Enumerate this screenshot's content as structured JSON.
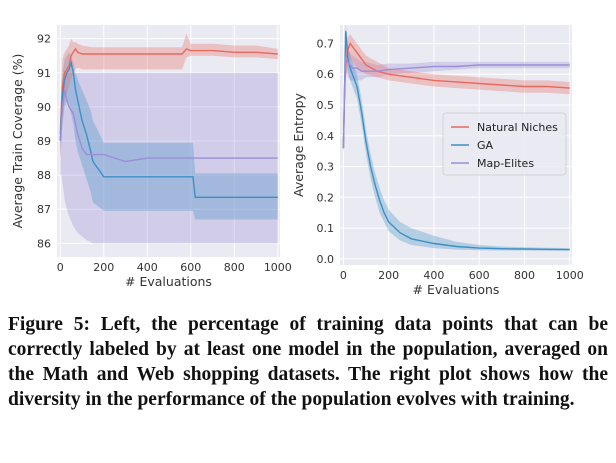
{
  "colors": {
    "natural_niches": "#e8695f",
    "ga": "#3f8fc4",
    "map_elites": "#9b8fd8",
    "grid": "#ffffff",
    "panel": "#eaeaf2"
  },
  "caption": {
    "text": "Figure 5: Left, the percentage of training data points that can be correctly labeled by at least one model in the population, averaged on the Math and Web shopping datasets. The right plot shows how the diversity in the performance of the population evolves with training."
  },
  "chart_data": [
    {
      "type": "line",
      "xlabel": "# Evaluations",
      "ylabel": "Average Train Coverage (%)",
      "xlim": [
        -15,
        1010
      ],
      "ylim": [
        85.6,
        92.4
      ],
      "xticks": [
        0,
        200,
        400,
        600,
        800,
        1000
      ],
      "yticks": [
        86,
        87,
        88,
        89,
        90,
        91,
        92
      ],
      "grid": true,
      "legend": "none",
      "series": [
        {
          "key": "natural_niches",
          "x": [
            0,
            5,
            10,
            20,
            30,
            40,
            50,
            60,
            70,
            80,
            100,
            150,
            200,
            300,
            400,
            500,
            560,
            580,
            600,
            700,
            800,
            900,
            1000
          ],
          "y": [
            89.2,
            90.0,
            90.6,
            91.0,
            91.1,
            91.2,
            91.5,
            91.6,
            91.7,
            91.6,
            91.55,
            91.55,
            91.55,
            91.55,
            91.55,
            91.55,
            91.55,
            91.7,
            91.65,
            91.65,
            91.6,
            91.6,
            91.55
          ],
          "lower": [
            88.5,
            89.0,
            89.6,
            90.2,
            90.4,
            90.6,
            90.8,
            91.0,
            91.1,
            91.15,
            91.1,
            91.1,
            91.1,
            91.1,
            91.1,
            91.1,
            91.1,
            91.45,
            91.5,
            91.5,
            91.45,
            91.45,
            91.4
          ],
          "upper": [
            89.8,
            90.8,
            91.4,
            91.6,
            91.7,
            91.8,
            92.0,
            91.9,
            91.9,
            91.85,
            91.8,
            91.75,
            91.75,
            91.75,
            91.75,
            91.75,
            91.75,
            92.15,
            91.85,
            91.85,
            91.8,
            91.8,
            91.7
          ]
        },
        {
          "key": "ga",
          "x": [
            0,
            5,
            10,
            20,
            30,
            40,
            50,
            60,
            70,
            80,
            100,
            120,
            140,
            150,
            200,
            300,
            400,
            500,
            610,
            620,
            700,
            800,
            900,
            1000
          ],
          "y": [
            89.0,
            89.8,
            90.3,
            90.8,
            91.0,
            91.1,
            91.3,
            91.0,
            90.5,
            90.2,
            89.6,
            89.2,
            88.7,
            88.4,
            87.95,
            87.95,
            87.95,
            87.95,
            87.95,
            87.35,
            87.35,
            87.35,
            87.35,
            87.35
          ],
          "lower": [
            88.5,
            89.0,
            89.5,
            90.0,
            90.2,
            90.1,
            89.8,
            89.5,
            89.0,
            88.7,
            88.3,
            87.9,
            87.5,
            87.2,
            86.95,
            86.95,
            86.95,
            86.95,
            86.95,
            86.7,
            86.7,
            86.7,
            86.7,
            86.7
          ],
          "upper": [
            89.6,
            90.4,
            91.0,
            91.4,
            91.5,
            91.6,
            91.5,
            91.3,
            91.0,
            90.8,
            90.5,
            90.2,
            89.9,
            89.6,
            88.95,
            88.95,
            88.95,
            88.95,
            88.95,
            88.05,
            88.05,
            88.05,
            88.05,
            88.05
          ]
        },
        {
          "key": "map_elites",
          "x": [
            0,
            5,
            10,
            20,
            30,
            40,
            60,
            80,
            100,
            120,
            150,
            200,
            300,
            400,
            500,
            600,
            700,
            800,
            900,
            1000
          ],
          "y": [
            89.0,
            89.5,
            90.0,
            90.5,
            90.2,
            90.0,
            89.8,
            89.2,
            88.8,
            88.6,
            88.6,
            88.6,
            88.4,
            88.5,
            88.5,
            88.5,
            88.5,
            88.5,
            88.5,
            88.5
          ],
          "lower": [
            88.0,
            88.0,
            87.8,
            87.3,
            87.0,
            86.8,
            86.5,
            86.3,
            86.2,
            86.1,
            86.0,
            86.0,
            86.0,
            86.0,
            86.0,
            86.0,
            86.0,
            86.0,
            86.0,
            86.0
          ],
          "upper": [
            89.6,
            90.2,
            90.6,
            91.0,
            91.0,
            91.0,
            91.0,
            91.0,
            91.0,
            91.0,
            91.0,
            91.0,
            91.0,
            91.0,
            91.0,
            91.0,
            91.0,
            91.0,
            91.0,
            91.0
          ]
        }
      ]
    },
    {
      "type": "line",
      "xlabel": "# Evaluations",
      "ylabel": "Average Entropy",
      "xlim": [
        -15,
        1010
      ],
      "ylim": [
        -0.02,
        0.76
      ],
      "xticks": [
        0,
        200,
        400,
        600,
        800,
        1000
      ],
      "yticks": [
        0.0,
        0.1,
        0.2,
        0.3,
        0.4,
        0.5,
        0.6,
        0.7
      ],
      "ytick_labels": [
        "0.0",
        "0.1",
        "0.2",
        "0.3",
        "0.4",
        "0.5",
        "0.6",
        "0.7"
      ],
      "grid": true,
      "legend": "center-right",
      "series": [
        {
          "key": "natural_niches",
          "name": "Natural Niches",
          "x": [
            0,
            5,
            10,
            20,
            30,
            40,
            60,
            80,
            100,
            150,
            200,
            300,
            400,
            500,
            600,
            700,
            800,
            900,
            1000
          ],
          "y": [
            0.36,
            0.52,
            0.63,
            0.68,
            0.7,
            0.69,
            0.67,
            0.65,
            0.63,
            0.61,
            0.6,
            0.59,
            0.58,
            0.575,
            0.57,
            0.565,
            0.56,
            0.56,
            0.555
          ],
          "lower": [
            0.34,
            0.48,
            0.58,
            0.63,
            0.65,
            0.64,
            0.62,
            0.61,
            0.6,
            0.59,
            0.58,
            0.57,
            0.56,
            0.555,
            0.55,
            0.545,
            0.54,
            0.54,
            0.535
          ],
          "upper": [
            0.4,
            0.56,
            0.68,
            0.72,
            0.73,
            0.72,
            0.7,
            0.68,
            0.66,
            0.64,
            0.62,
            0.61,
            0.6,
            0.595,
            0.59,
            0.585,
            0.58,
            0.58,
            0.575
          ]
        },
        {
          "key": "ga",
          "name": "GA",
          "x": [
            0,
            5,
            10,
            15,
            20,
            30,
            40,
            60,
            80,
            100,
            120,
            140,
            160,
            180,
            200,
            250,
            300,
            400,
            500,
            600,
            700,
            800,
            900,
            1000
          ],
          "y": [
            0.36,
            0.55,
            0.74,
            0.7,
            0.65,
            0.62,
            0.6,
            0.56,
            0.48,
            0.38,
            0.3,
            0.24,
            0.19,
            0.15,
            0.12,
            0.085,
            0.065,
            0.05,
            0.04,
            0.035,
            0.033,
            0.032,
            0.031,
            0.03
          ],
          "lower": [
            0.34,
            0.5,
            0.7,
            0.66,
            0.61,
            0.58,
            0.56,
            0.52,
            0.44,
            0.34,
            0.26,
            0.2,
            0.15,
            0.12,
            0.09,
            0.06,
            0.045,
            0.035,
            0.03,
            0.028,
            0.027,
            0.027,
            0.026,
            0.026
          ],
          "upper": [
            0.38,
            0.6,
            0.76,
            0.74,
            0.69,
            0.66,
            0.64,
            0.6,
            0.52,
            0.42,
            0.34,
            0.28,
            0.23,
            0.19,
            0.16,
            0.12,
            0.1,
            0.075,
            0.055,
            0.045,
            0.04,
            0.038,
            0.036,
            0.035
          ]
        },
        {
          "key": "map_elites",
          "name": "Map-Elites",
          "x": [
            0,
            5,
            10,
            20,
            30,
            40,
            60,
            80,
            100,
            150,
            200,
            300,
            400,
            500,
            600,
            700,
            800,
            900,
            1000
          ],
          "y": [
            0.36,
            0.55,
            0.66,
            0.64,
            0.63,
            0.62,
            0.62,
            0.61,
            0.61,
            0.61,
            0.615,
            0.62,
            0.625,
            0.625,
            0.63,
            0.63,
            0.63,
            0.63,
            0.63
          ],
          "lower": [
            0.34,
            0.5,
            0.61,
            0.59,
            0.58,
            0.58,
            0.58,
            0.58,
            0.59,
            0.59,
            0.6,
            0.605,
            0.61,
            0.615,
            0.62,
            0.62,
            0.62,
            0.62,
            0.62
          ],
          "upper": [
            0.4,
            0.6,
            0.7,
            0.68,
            0.67,
            0.66,
            0.65,
            0.64,
            0.64,
            0.63,
            0.635,
            0.635,
            0.64,
            0.64,
            0.64,
            0.64,
            0.64,
            0.64,
            0.64
          ]
        }
      ]
    }
  ]
}
